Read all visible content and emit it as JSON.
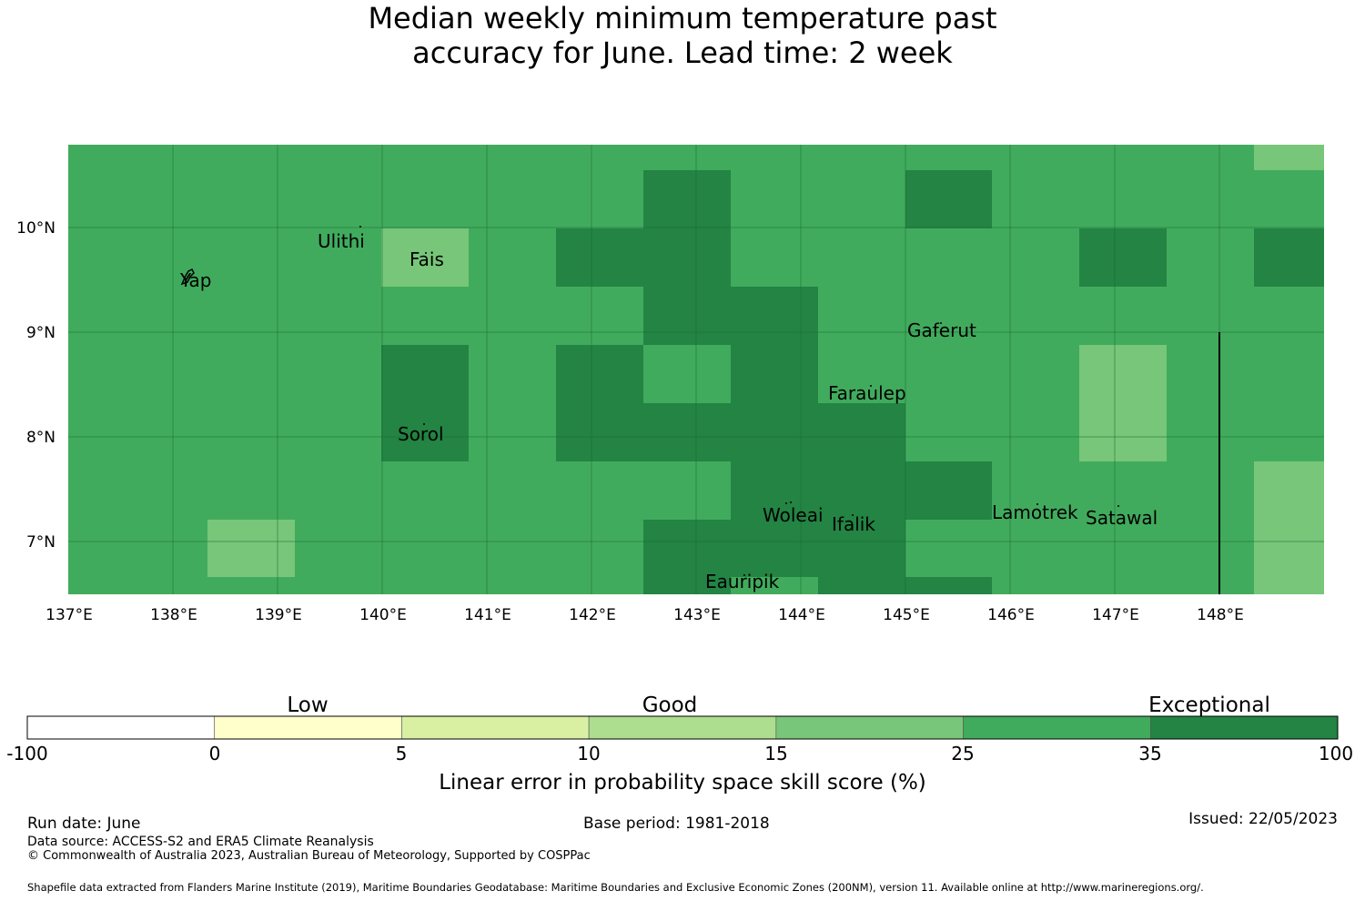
{
  "title": {
    "line1": "Median weekly minimum temperature past",
    "line2": "accuracy for June. Lead time: 2 week"
  },
  "map": {
    "lat_labels": [
      "10°N",
      "9°N",
      "8°N",
      "7°N"
    ],
    "lon_labels": [
      "137°E",
      "138°E",
      "139°E",
      "140°E",
      "141°E",
      "142°E",
      "143°E",
      "144°E",
      "145°E",
      "146°E",
      "147°E",
      "148°E"
    ],
    "places": [
      "Ulithi",
      "Fais",
      "Yap",
      "Gaferut",
      "Faraulep",
      "Sorol",
      "Woleai",
      "Ifalik",
      "Lamotrek",
      "Satawal",
      "Eauripik"
    ],
    "category_colors": {
      "c25_35": "#41ab5d",
      "c35_100": "#238443",
      "c15_25": "#78c679"
    }
  },
  "colorbar": {
    "categories": [
      "Low",
      "Good",
      "Exceptional"
    ],
    "ticks": [
      "-100",
      "0",
      "5",
      "10",
      "15",
      "25",
      "35",
      "100"
    ],
    "colors": [
      "#ffffff",
      "#ffffcc",
      "#d9f0a3",
      "#addd8e",
      "#78c679",
      "#41ab5d",
      "#238443"
    ],
    "label": "Linear error in probability space skill score (%)"
  },
  "footer": {
    "run_date": "Run date: June",
    "base_period": "Base period: 1981-2018",
    "issued": "Issued: 22/05/2023",
    "data_source": "Data source: ACCESS-S2 and ERA5 Climate Reanalysis",
    "copyright": "© Commonwealth of Australia 2023, Australian Bureau of Meteorology, Supported by COSPPac",
    "shapefile": "Shapefile data extracted from Flanders Marine Institute (2019), Maritime Boundaries Geodatabase: Maritime Boundaries and Exclusive Economic Zones (200NM), version 11. Available online at http://www.marineregions.org/."
  }
}
